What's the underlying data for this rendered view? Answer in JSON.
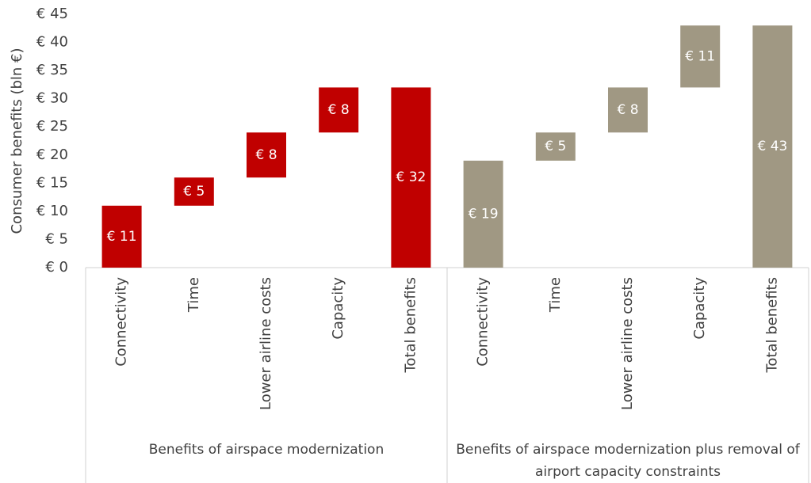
{
  "chart_data": {
    "type": "waterfall",
    "ylabel": "Consumer benefits (bln €)",
    "ylim": [
      0,
      45
    ],
    "yticks": [
      {
        "value": 0,
        "label": "€ 0"
      },
      {
        "value": 5,
        "label": "€ 5"
      },
      {
        "value": 10,
        "label": "€ 10"
      },
      {
        "value": 15,
        "label": "€ 15"
      },
      {
        "value": 20,
        "label": "€ 20"
      },
      {
        "value": 25,
        "label": "€ 25"
      },
      {
        "value": 30,
        "label": "€ 30"
      },
      {
        "value": 35,
        "label": "€ 35"
      },
      {
        "value": 40,
        "label": "€ 40"
      },
      {
        "value": 45,
        "label": "€ 45"
      }
    ],
    "groups": [
      {
        "name": "Benefits of airspace modernization",
        "color": "#c00000",
        "categories": [
          "Connectivity",
          "Time",
          "Lower airline costs",
          "Capacity",
          "Total benefits"
        ],
        "values": [
          11,
          5,
          8,
          8,
          32
        ],
        "value_labels": [
          "€ 11",
          "€ 5",
          "€ 8",
          "€ 8",
          "€ 32"
        ]
      },
      {
        "name": "Benefits of airspace modernization plus removal of airport capacity constraints",
        "color": "#a09883",
        "categories": [
          "Connectivity",
          "Time",
          "Lower airline costs",
          "Capacity",
          "Total benefits"
        ],
        "values": [
          19,
          5,
          8,
          11,
          43
        ],
        "value_labels": [
          "€ 19",
          "€ 5",
          "€ 8",
          "€ 11",
          "€ 43"
        ]
      }
    ]
  }
}
